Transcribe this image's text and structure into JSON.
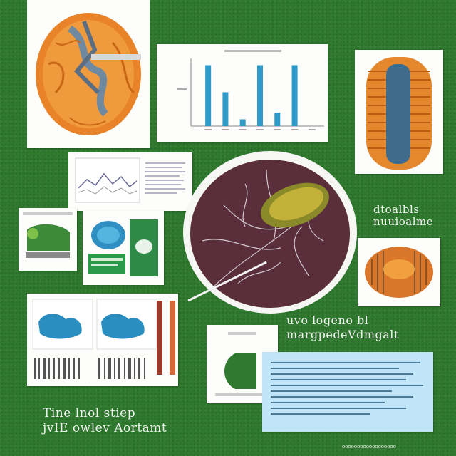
{
  "captions": {
    "right_top": "dtoalbls\nnuuioalme",
    "right_mid": "uvo logeno bl\nmargpedeVdmgalt",
    "bottom_left": "Tine lnol stiep\njvIE owlev Aortamt",
    "bottom_right_strip": "oooooooooooooooooo"
  },
  "chart_data": {
    "type": "bar",
    "categories": [
      "",
      "",
      "",
      "",
      "",
      "",
      ""
    ],
    "values": [
      9,
      5,
      1,
      9,
      2,
      9,
      0
    ],
    "title": "",
    "xlabel": "",
    "ylabel": "",
    "ylim": [
      0,
      10
    ]
  },
  "colors": {
    "background": "#2f7a2e",
    "mito_orange": "#e8832a",
    "bar_blue": "#2d9ac9",
    "cell_purple": "#5a2e3a",
    "note_blue": "#bfe4f7"
  }
}
